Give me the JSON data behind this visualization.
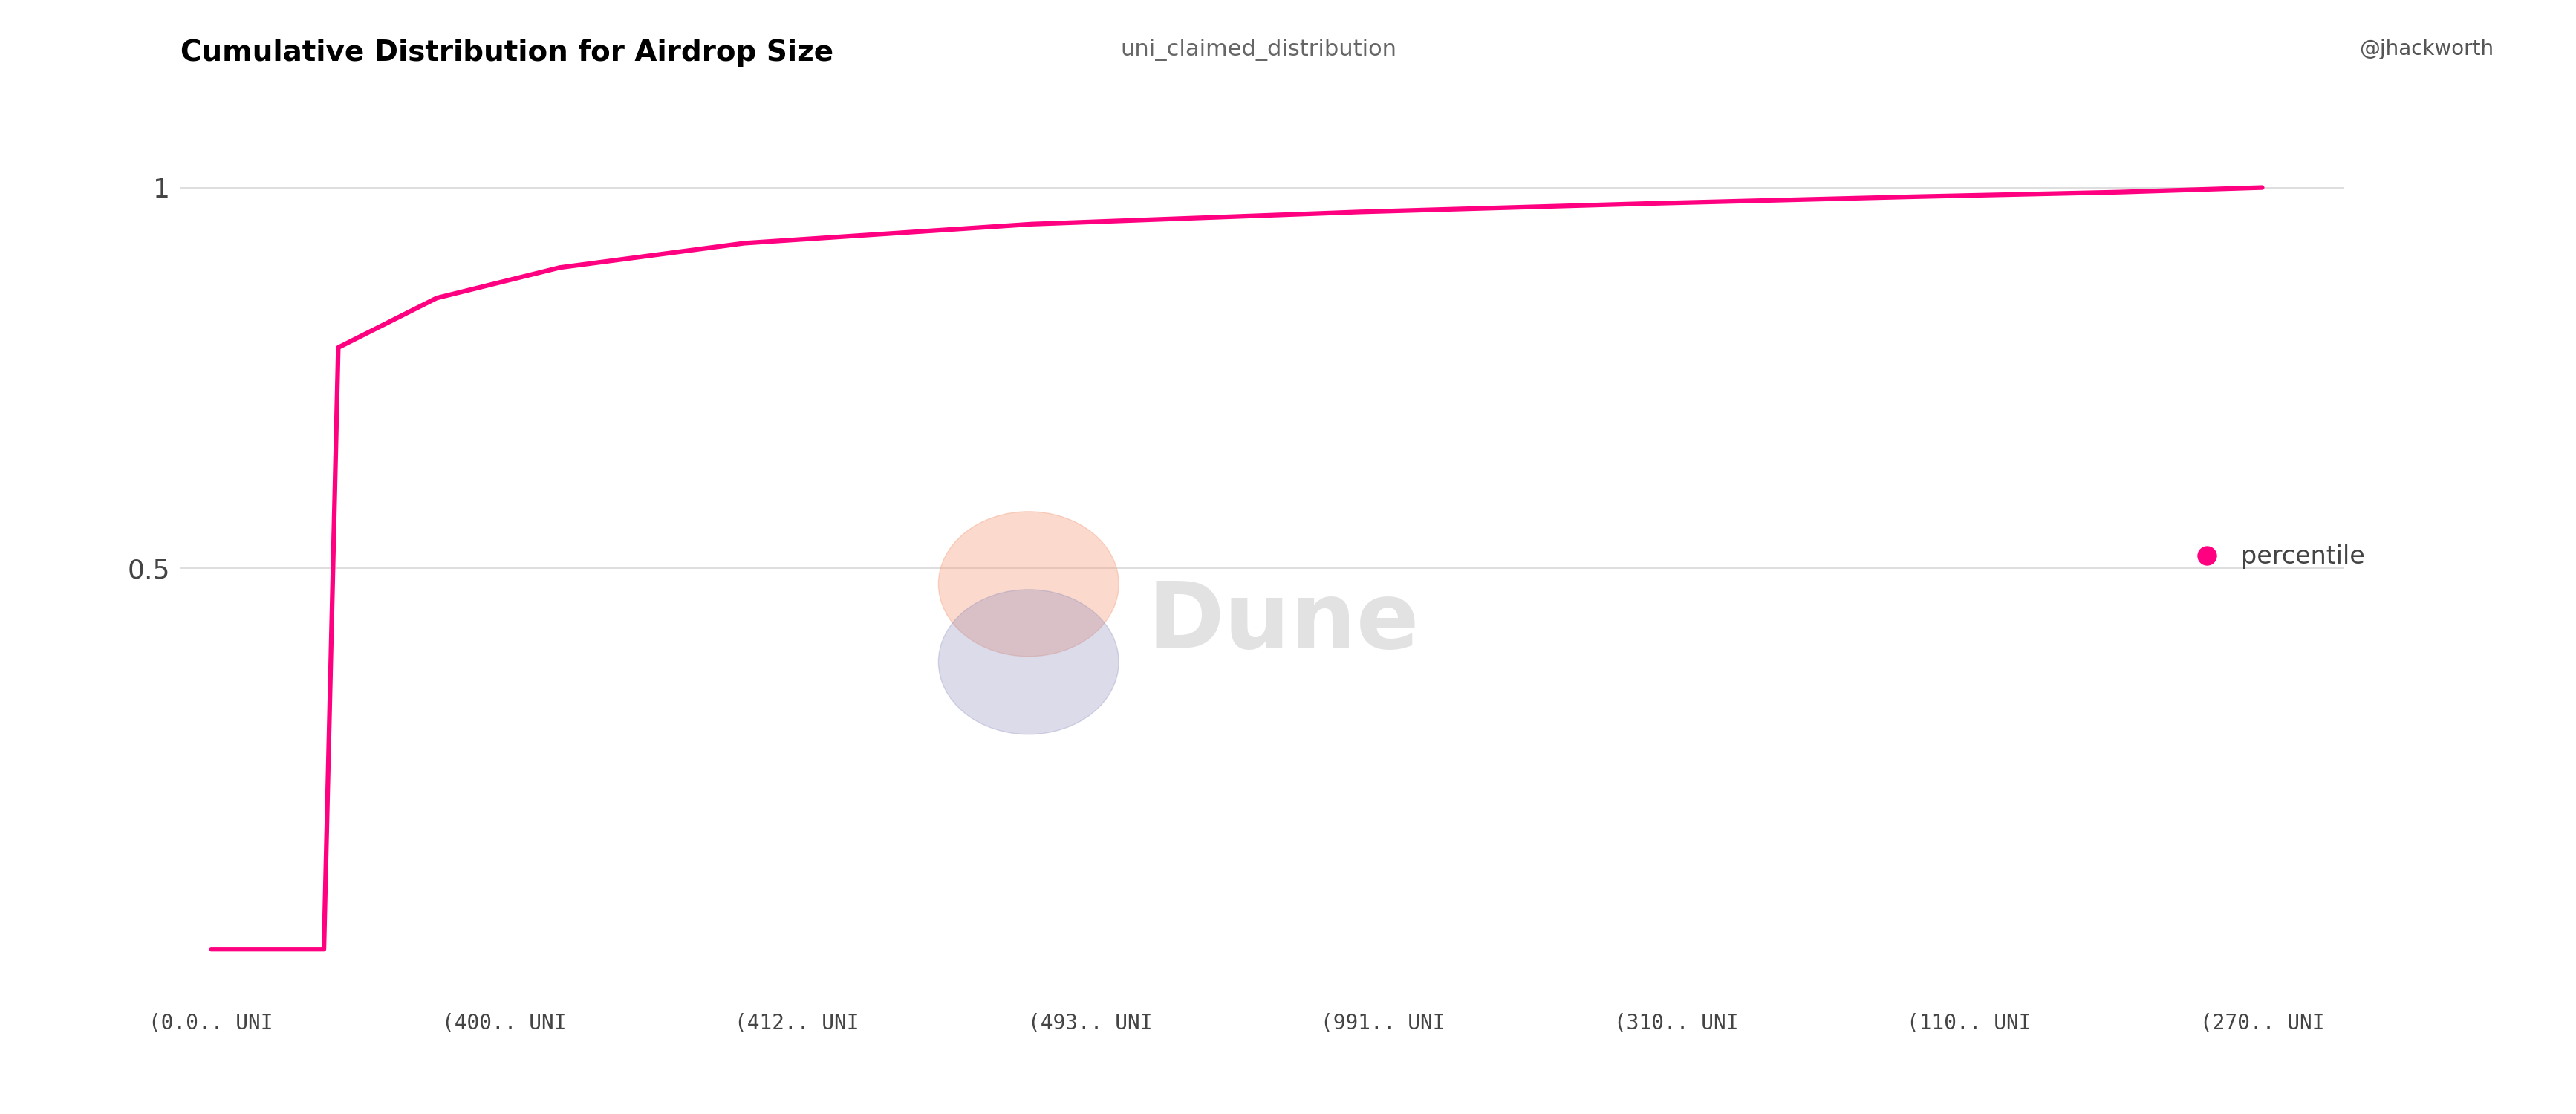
{
  "title_bold": "Cumulative Distribution for Airdrop Size",
  "title_normal": "uni_claimed_distribution",
  "line_color": "#FF0080",
  "line_width": 4.5,
  "background_color": "#FFFFFF",
  "watermark_text": "Dune",
  "legend_label": "percentile",
  "legend_dot_color": "#FF0080",
  "ytick_labels": [
    "0.5",
    "1"
  ],
  "ytick_values": [
    0.5,
    1.0
  ],
  "xtick_labels": [
    "(0.0.. UNI",
    "(400.. UNI",
    "(412.. UNI",
    "(493.. UNI",
    "(991.. UNI",
    "(310.. UNI",
    "(110.. UNI",
    "(270.. UNI"
  ],
  "grid_color": "#D8D8D8",
  "title_fontsize": 28,
  "subtitle_fontsize": 22,
  "axis_fontsize": 20,
  "tick_label_color": "#444444",
  "attribution": "@jhackworth",
  "x_data": [
    0.0,
    0.055,
    0.062,
    0.11,
    0.17,
    0.26,
    0.4,
    0.56,
    0.7,
    0.83,
    0.93,
    1.0
  ],
  "y_data": [
    0.0,
    0.0,
    0.79,
    0.855,
    0.895,
    0.927,
    0.952,
    0.968,
    0.979,
    0.988,
    0.994,
    1.0
  ]
}
